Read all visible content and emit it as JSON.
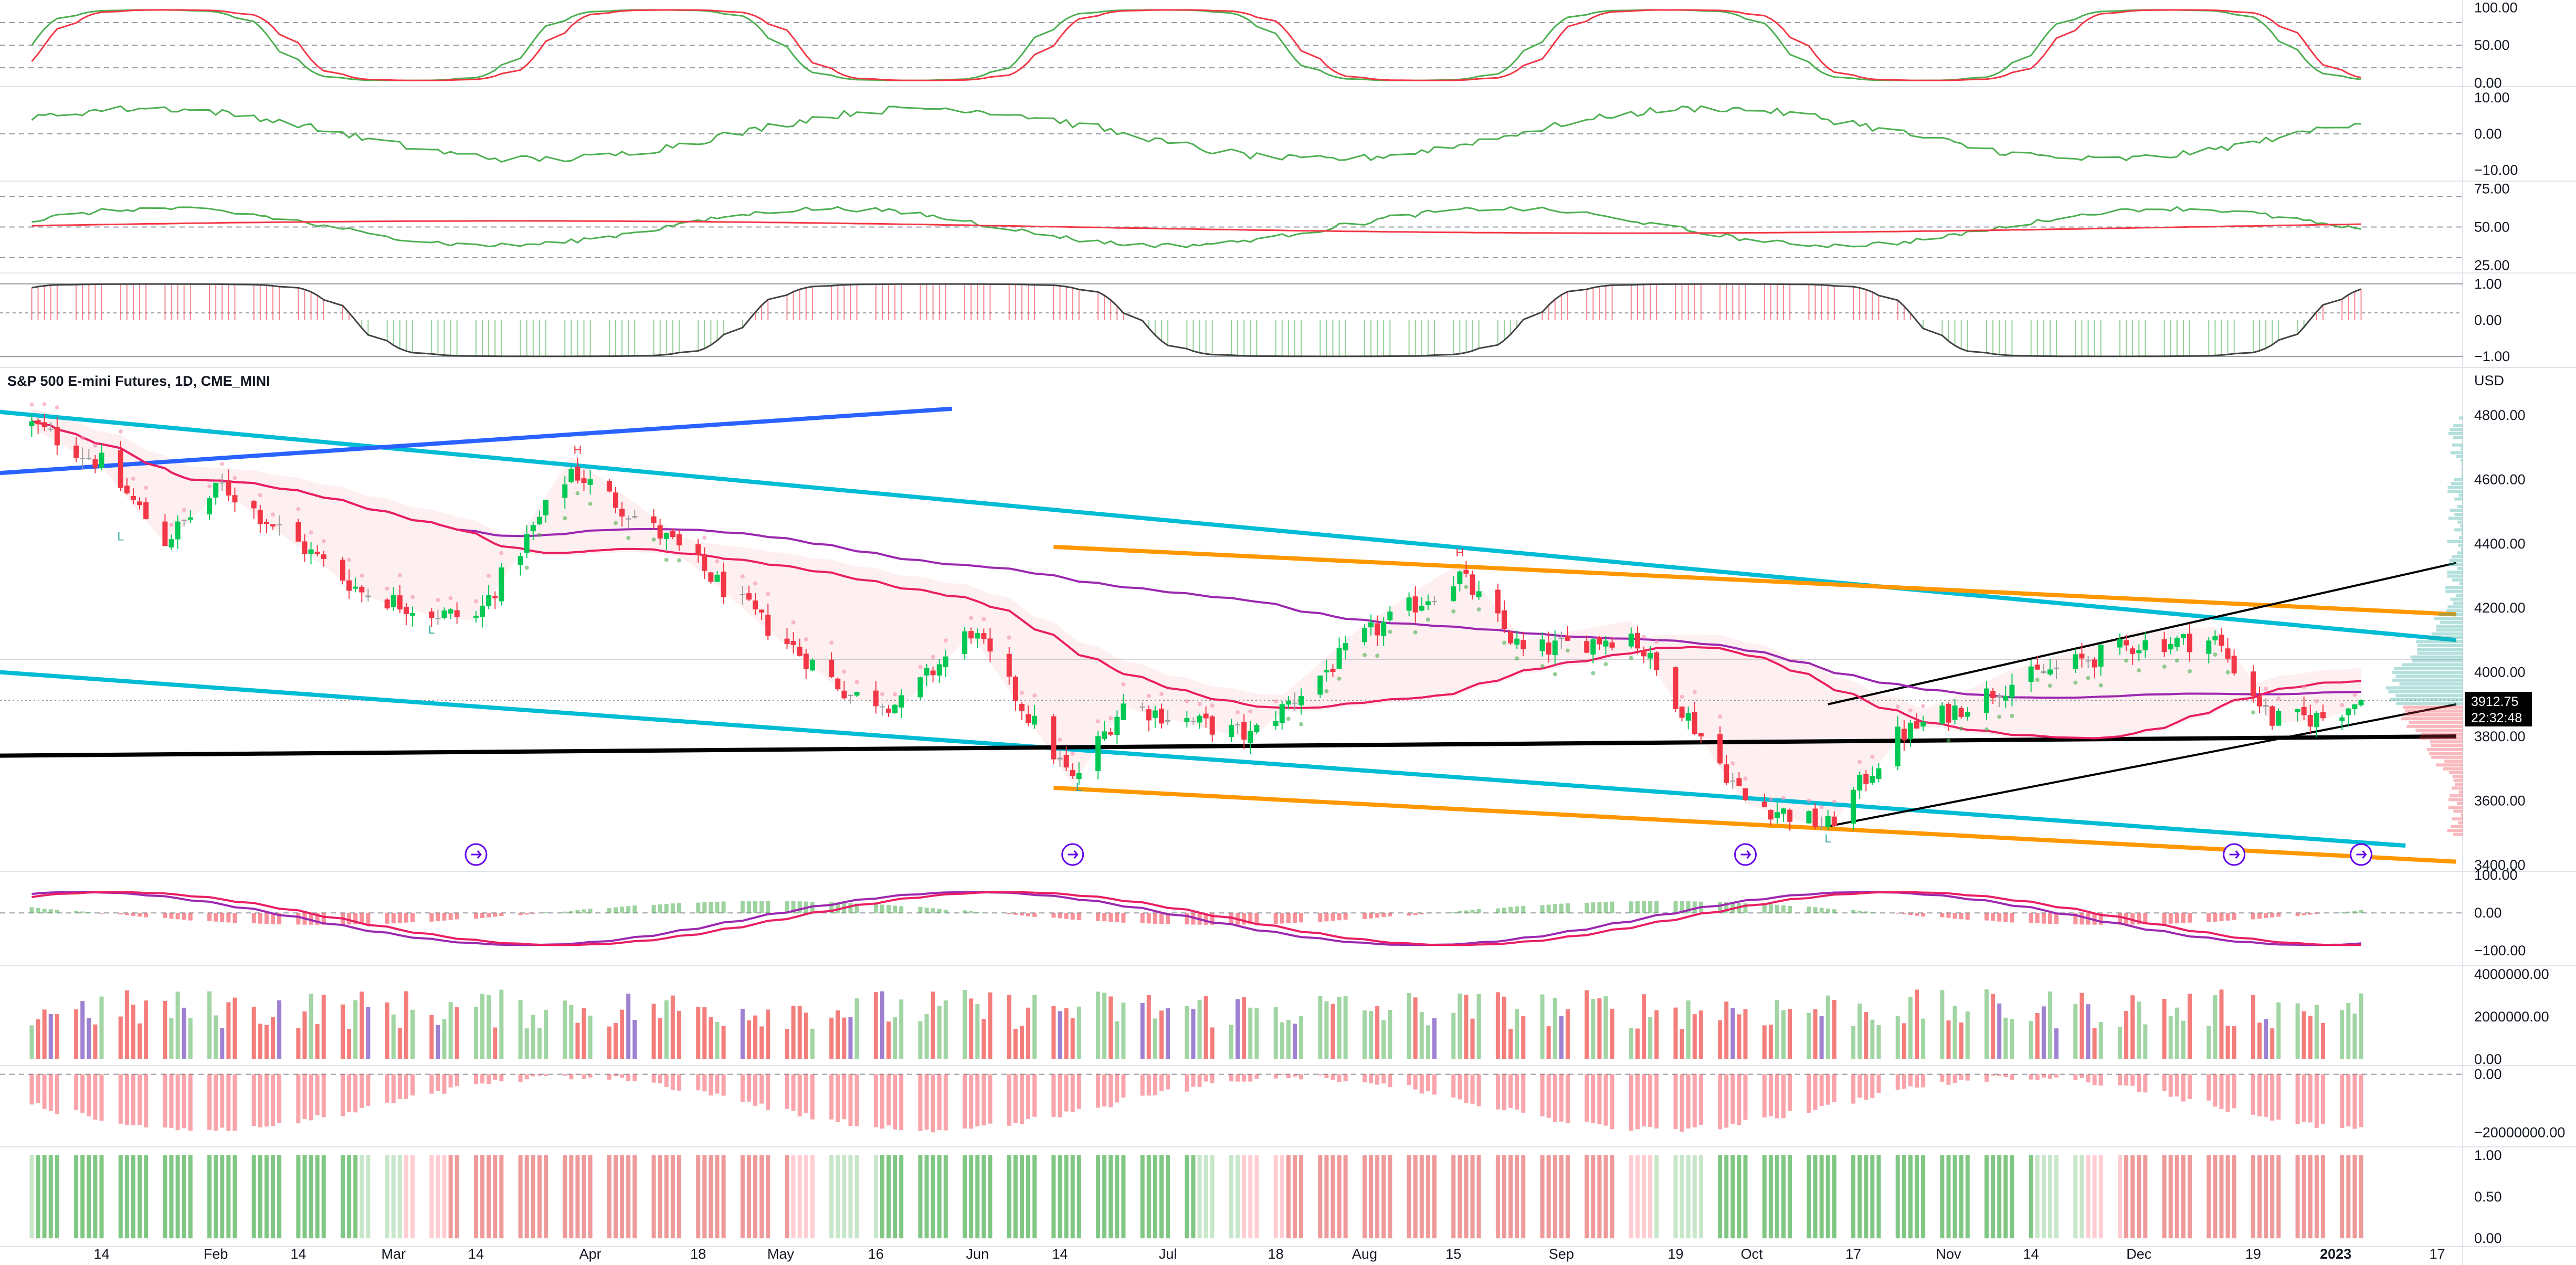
{
  "title": "S&P 500 E-mini Futures, 1D, CME_MINI",
  "currency": "USD",
  "price_badge": {
    "price": "3912.75",
    "countdown": "22:32:48"
  },
  "x_axis_labels": [
    "14",
    "Feb",
    "14",
    "Mar",
    "14",
    "Apr",
    "18",
    "May",
    "16",
    "Jun",
    "14",
    "Jul",
    "18",
    "Aug",
    "15",
    "Sep",
    "19",
    "Oct",
    "17",
    "Nov",
    "14",
    "Dec",
    "19",
    "2023",
    "17"
  ],
  "x_axis_labels_bold": [
    "2023"
  ],
  "markers": {
    "high": "H",
    "low": "L"
  },
  "colors": {
    "up": "#26a69a",
    "up_candle": "#00c853",
    "down": "#f23645",
    "neutral": "#9e9e9e",
    "channel": "#00bcd4",
    "orange": "#ff9800",
    "blue": "#2962ff",
    "purple": "#9c27b0",
    "crimson": "#e91e63",
    "signal": "#ff1744"
  },
  "chart_data": [
    {
      "type": "candlestick",
      "name": "price",
      "title": "S&P 500 E-mini Futures, 1D, CME_MINI",
      "ylabel": "USD",
      "yticks": [
        3400,
        3600,
        3800,
        4000,
        4200,
        4400,
        4600,
        4800
      ],
      "ylim": [
        3380,
        4880
      ],
      "current_price": 3912.75,
      "points": [
        [
          "2022-01-03",
          4770
        ],
        [
          "2022-01-14",
          4650
        ],
        [
          "2022-01-24",
          4410
        ],
        [
          "2022-02-02",
          4580
        ],
        [
          "2022-02-14",
          4400
        ],
        [
          "2022-02-24",
          4250
        ],
        [
          "2022-03-08",
          4180
        ],
        [
          "2022-03-14",
          4170
        ],
        [
          "2022-03-29",
          4630
        ],
        [
          "2022-04-14",
          4400
        ],
        [
          "2022-04-29",
          4140
        ],
        [
          "2022-05-12",
          3930
        ],
        [
          "2022-05-20",
          3900
        ],
        [
          "2022-05-31",
          4130
        ],
        [
          "2022-06-16",
          3660
        ],
        [
          "2022-06-24",
          3900
        ],
        [
          "2022-07-14",
          3800
        ],
        [
          "2022-08-01",
          4110
        ],
        [
          "2022-08-16",
          4300
        ],
        [
          "2022-08-26",
          4060
        ],
        [
          "2022-09-12",
          4120
        ],
        [
          "2022-09-30",
          3600
        ],
        [
          "2022-10-13",
          3520
        ],
        [
          "2022-10-24",
          3800
        ],
        [
          "2022-11-10",
          3960
        ],
        [
          "2022-12-01",
          4090
        ],
        [
          "2022-12-13",
          4100
        ],
        [
          "2022-12-22",
          3850
        ],
        [
          "2022-12-30",
          3860
        ],
        [
          "2023-01-05",
          3912.75
        ]
      ],
      "lines": [
        {
          "name": "lower-channel",
          "color": "#00bcd4",
          "from": [
            "2021-12-29",
            4000
          ],
          "to": [
            "2023-01-12",
            3460
          ]
        },
        {
          "name": "upper-channel",
          "color": "#00bcd4",
          "from": [
            "2021-12-29",
            4810
          ],
          "to": [
            "2023-01-20",
            4100
          ]
        },
        {
          "name": "blue-trend",
          "color": "#2962ff",
          "from": [
            "2021-12-29",
            4620
          ],
          "to": [
            "2022-05-28",
            4820
          ]
        },
        {
          "name": "black-support",
          "color": "#000000",
          "from": [
            "2021-12-29",
            3740
          ],
          "to": [
            "2023-01-20",
            3800
          ]
        },
        {
          "name": "orange-top",
          "color": "#ff9800",
          "from": [
            "2022-06-13",
            4390
          ],
          "to": [
            "2023-01-20",
            4180
          ]
        },
        {
          "name": "orange-bottom",
          "color": "#ff9800",
          "from": [
            "2022-06-13",
            3640
          ],
          "to": [
            "2023-01-20",
            3410
          ]
        },
        {
          "name": "wedge-top",
          "color": "#000000",
          "from": [
            "2022-10-13",
            3900
          ],
          "to": [
            "2023-01-20",
            4340
          ]
        },
        {
          "name": "wedge-bottom",
          "color": "#000000",
          "from": [
            "2022-10-13",
            3520
          ],
          "to": [
            "2023-01-20",
            3900
          ]
        }
      ]
    },
    {
      "type": "line",
      "name": "stochastic-rsi",
      "yticks": [
        0,
        50,
        100
      ],
      "ylim": [
        -5,
        110
      ]
    },
    {
      "type": "line",
      "name": "momentum",
      "yticks": [
        -10,
        0,
        10
      ],
      "ylim": [
        -13,
        13
      ]
    },
    {
      "type": "line",
      "name": "rsi",
      "yticks": [
        25,
        50,
        75
      ],
      "ylim": [
        20,
        80
      ]
    },
    {
      "type": "line",
      "name": "oscillator",
      "yticks": [
        -1,
        0,
        1
      ],
      "ylim": [
        -1.3,
        1.3
      ]
    },
    {
      "type": "bar",
      "name": "macd",
      "yticks": [
        -100,
        0,
        100
      ],
      "ylim": [
        -140,
        110
      ]
    },
    {
      "type": "bar",
      "name": "volume",
      "yticks": [
        0,
        2000000,
        4000000
      ],
      "ylim": [
        -300000,
        4400000
      ]
    },
    {
      "type": "bar",
      "name": "cumulative-delta",
      "yticks": [
        -20000000,
        0
      ],
      "ylim": [
        -25000000,
        3000000
      ]
    },
    {
      "type": "bar",
      "name": "regime",
      "yticks": [
        0,
        0.5,
        1
      ],
      "ylim": [
        -0.1,
        1.1
      ]
    }
  ],
  "axis_ticks": {
    "price": [
      "4800.00",
      "4600.00",
      "4400.00",
      "4200.00",
      "4000.00",
      "3800.00",
      "3600.00",
      "3400.00"
    ],
    "stoch": [
      "100.00",
      "50.00",
      "0.00"
    ],
    "momentum": [
      "10.00",
      "0.00",
      "−10.00"
    ],
    "rsi": [
      "75.00",
      "50.00",
      "25.00"
    ],
    "osc": [
      "1.00",
      "0.00",
      "−1.00"
    ],
    "macd": [
      "100.00",
      "0.00",
      "−100.00"
    ],
    "volume": [
      "4000000.00",
      "2000000.00",
      "0.00"
    ],
    "delta": [
      "0.00",
      "−20000000.00"
    ],
    "regime": [
      "1.00",
      "0.50",
      "0.00"
    ]
  }
}
